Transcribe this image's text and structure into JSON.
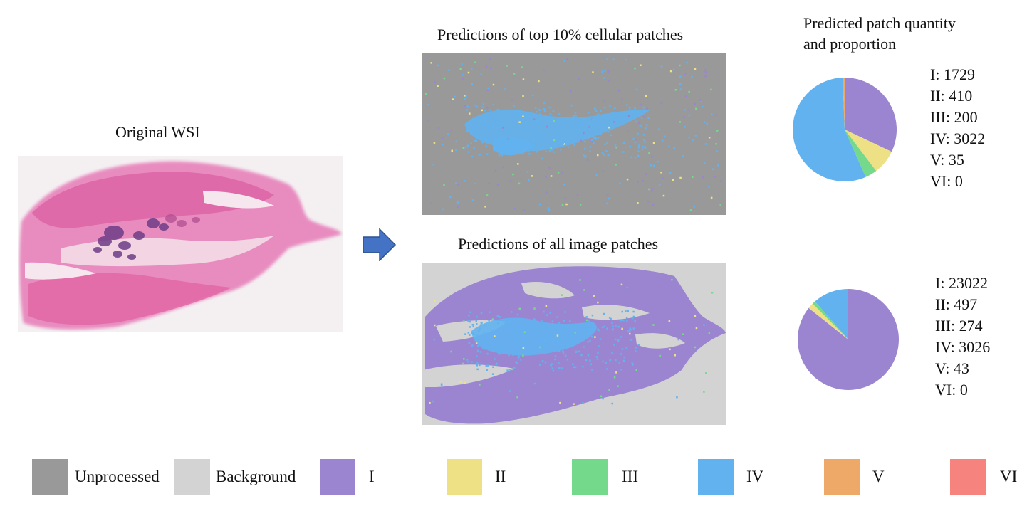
{
  "labels": {
    "original": "Original WSI",
    "top_panel": "Predictions of top 10% cellular patches",
    "bottom_panel": "Predictions of all image patches",
    "pie_title_line1": "Predicted patch quantity",
    "pie_title_line2": "and proportion"
  },
  "colors": {
    "unprocessed": "#999999",
    "background": "#d3d3d3",
    "I": "#9b85d0",
    "II": "#ede085",
    "III": "#75d98c",
    "IV": "#61b2ef",
    "V": "#eea868",
    "VI": "#f7837f",
    "arrow": "#4472c4"
  },
  "legend": [
    {
      "key": "unprocessed",
      "label": "Unprocessed"
    },
    {
      "key": "background",
      "label": "Background"
    },
    {
      "key": "I",
      "label": "I"
    },
    {
      "key": "II",
      "label": "II"
    },
    {
      "key": "III",
      "label": "III"
    },
    {
      "key": "IV",
      "label": "IV"
    },
    {
      "key": "V",
      "label": "V"
    },
    {
      "key": "VI",
      "label": "VI"
    }
  ],
  "counts_top": [
    {
      "label": "I: 1729"
    },
    {
      "label": "II: 410"
    },
    {
      "label": "III: 200"
    },
    {
      "label": "IV: 3022"
    },
    {
      "label": "V: 35"
    },
    {
      "label": "VI: 0"
    }
  ],
  "counts_bottom": [
    {
      "label": "I: 23022"
    },
    {
      "label": "II: 497"
    },
    {
      "label": "III: 274"
    },
    {
      "label": "IV: 3026"
    },
    {
      "label": "V: 43"
    },
    {
      "label": "VI: 0"
    }
  ],
  "chart_data": [
    {
      "type": "pie",
      "categories": [
        "I",
        "II",
        "III",
        "IV",
        "V",
        "VI"
      ],
      "values": [
        1729,
        410,
        200,
        3022,
        35,
        0
      ]
    },
    {
      "type": "pie",
      "categories": [
        "I",
        "II",
        "III",
        "IV",
        "V",
        "VI"
      ],
      "values": [
        23022,
        497,
        274,
        3026,
        43,
        0
      ]
    }
  ]
}
